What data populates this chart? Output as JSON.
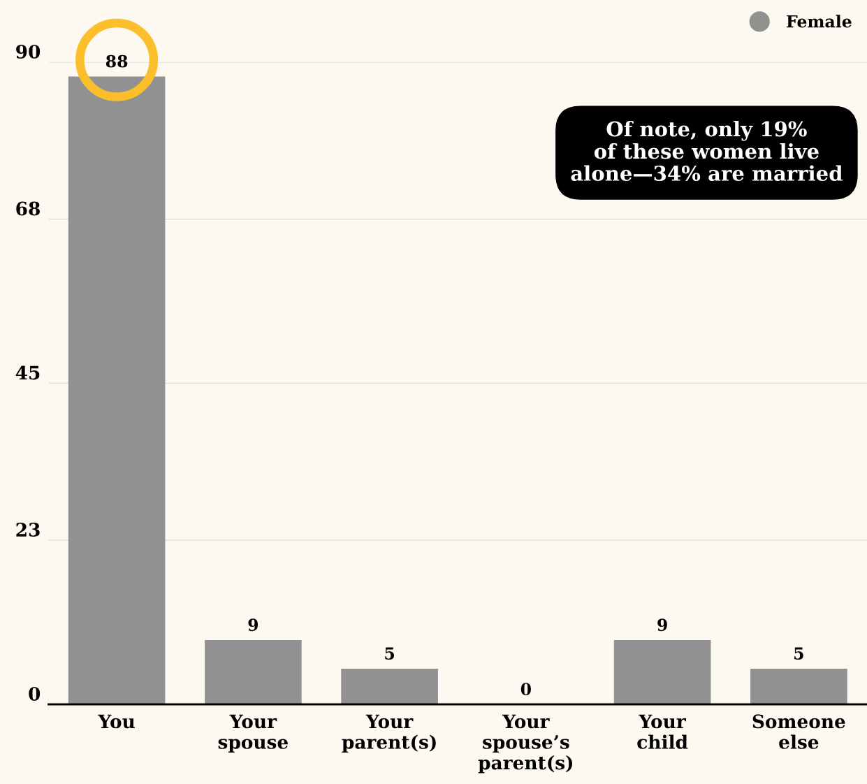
{
  "chart_data": {
    "type": "bar",
    "categories": [
      "You",
      "Your\nspouse",
      "Your\nparent(s)",
      "Your\nspouse’s\nparent(s)",
      "Your\nchild",
      "Someone\nelse"
    ],
    "series": [
      {
        "name": "Female",
        "color": "#919191",
        "values": [
          88,
          9,
          5,
          0,
          9,
          5
        ]
      }
    ],
    "ylim": [
      0,
      90
    ],
    "yticks": [
      0,
      23,
      45,
      68,
      90
    ],
    "grid": "y",
    "legend": "top right",
    "data_labels": true,
    "annotations": [
      "Of note, only 19%\nof these women live\nalone—34% are married"
    ]
  }
}
